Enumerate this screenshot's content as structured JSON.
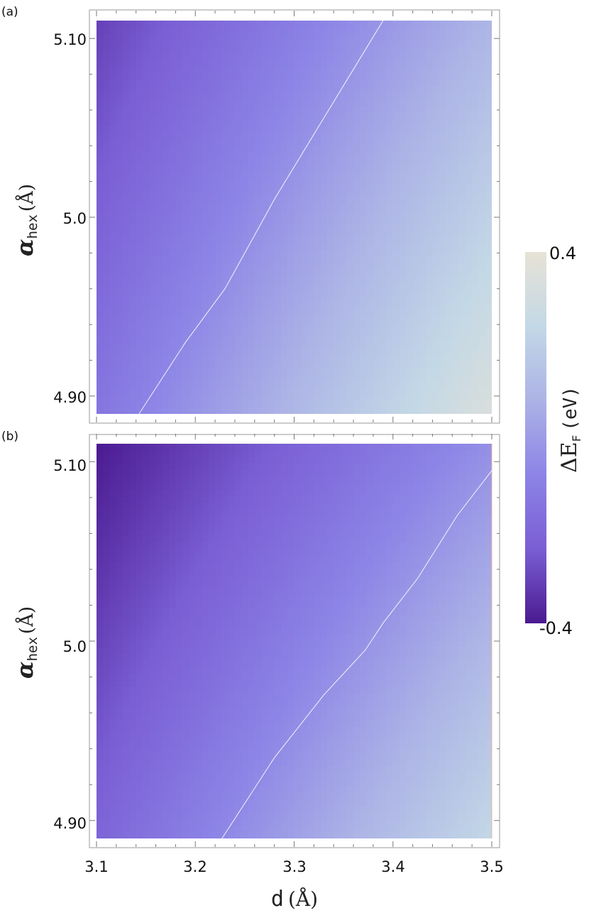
{
  "chart_data": [
    {
      "panel_label": "(a)",
      "type": "heatmap",
      "x_range": [
        3.1,
        3.5
      ],
      "y_range": [
        4.89,
        5.11
      ],
      "corner_values": {
        "d3.1_a4.89": -0.14,
        "d3.5_a4.89": 0.34,
        "d3.1_a5.11": -0.31,
        "d3.5_a5.11": 0.09
      },
      "zero_contour": [
        [
          3.143,
          4.89
        ],
        [
          3.19,
          4.93
        ],
        [
          3.23,
          4.96
        ],
        [
          3.265,
          4.995
        ],
        [
          3.28,
          5.01
        ],
        [
          3.335,
          5.06
        ],
        [
          3.39,
          5.11
        ]
      ],
      "ytick_labels": [
        "4.90",
        "5.0",
        "5.10"
      ],
      "ytick_values": [
        4.9,
        5.0,
        5.1
      ],
      "ylabel": "α_hex (Å)"
    },
    {
      "panel_label": "(b)",
      "type": "heatmap",
      "x_range": [
        3.1,
        3.5
      ],
      "y_range": [
        4.89,
        5.11
      ],
      "corner_values": {
        "d3.1_a4.89": -0.21,
        "d3.5_a4.89": 0.24,
        "d3.1_a5.11": -0.4,
        "d3.5_a5.11": -0.04
      },
      "zero_contour": [
        [
          3.227,
          4.89
        ],
        [
          3.28,
          4.935
        ],
        [
          3.33,
          4.97
        ],
        [
          3.372,
          4.995
        ],
        [
          3.39,
          5.01
        ],
        [
          3.425,
          5.035
        ],
        [
          3.465,
          5.07
        ],
        [
          3.5,
          5.095
        ]
      ],
      "ytick_labels": [
        "4.90",
        "5.0",
        "5.10"
      ],
      "ytick_values": [
        4.9,
        5.0,
        5.1
      ],
      "xtick_labels": [
        "3.1",
        "3.2",
        "3.3",
        "3.4",
        "3.5"
      ],
      "xtick_values": [
        3.1,
        3.2,
        3.3,
        3.4,
        3.5
      ],
      "xlabel": "d (Å)",
      "ylabel": "α_hex (Å)"
    }
  ],
  "colorbar": {
    "min": -0.4,
    "max": 0.4,
    "min_label": "-0.4",
    "max_label": "0.4",
    "label": "ΔE_F (eV)",
    "colors": [
      "#4b1a90",
      "#7a5ed4",
      "#8c84e6",
      "#acb3e6",
      "#c3d8e6",
      "#e7e2d6"
    ]
  },
  "text": {
    "label_a": "(a)",
    "label_b": "(b)",
    "alpha_sym": "α",
    "hex_sub": "hex",
    "angstrom_paren": "(Å)",
    "d_sym": "d",
    "delta_e": "ΔE",
    "f_sub": "F",
    "ev_paren": "(eV)"
  }
}
